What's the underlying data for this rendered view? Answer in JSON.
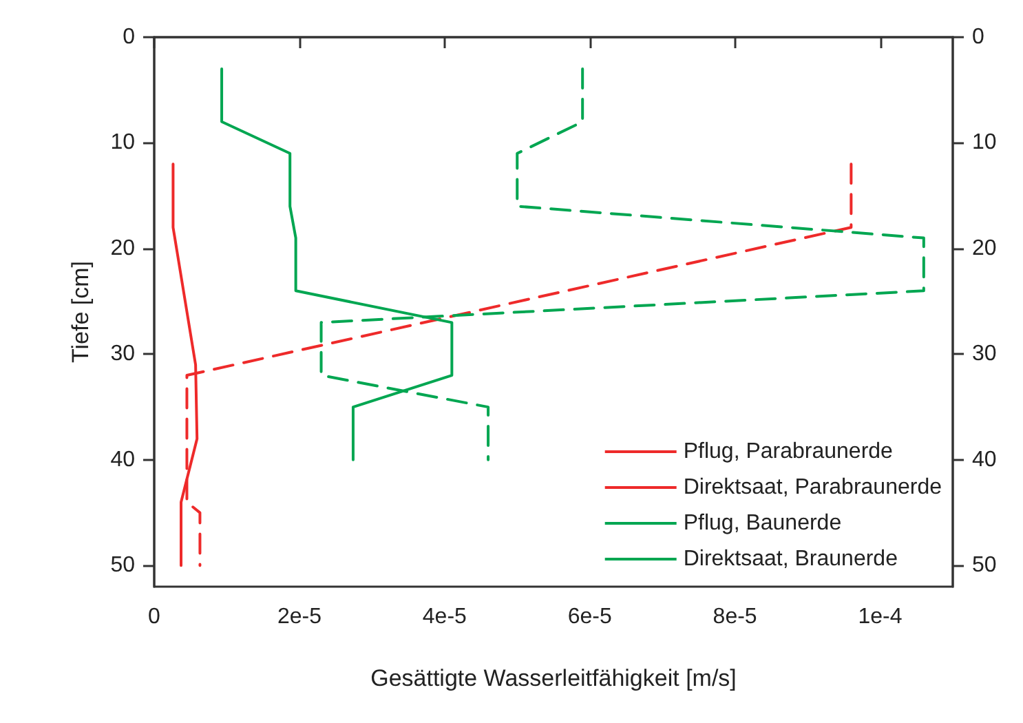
{
  "chart_data": {
    "type": "line",
    "xlabel": "Gesättigte Wasserleitfähigkeit [m/s]",
    "ylabel": "Tiefe [cm]",
    "xlim": [
      0,
      0.00011
    ],
    "xticks": [
      0,
      {
        "value": 2e-05,
        "label": "2e-5"
      },
      {
        "value": 4e-05,
        "label": "4e-5"
      },
      {
        "value": 6e-05,
        "label": "6e-5"
      },
      {
        "value": 8e-05,
        "label": "8e-5"
      },
      {
        "value": 0.0001,
        "label": "1e-4"
      }
    ],
    "ylim": [
      52,
      0
    ],
    "yticks": [
      0,
      10,
      20,
      30,
      40,
      50
    ],
    "y2lim": [
      52,
      0
    ],
    "y2ticks": [
      0,
      10,
      20,
      30,
      40,
      50
    ],
    "grid": false,
    "legend": "bottom right",
    "marker": "none",
    "series": [
      {
        "name": "Pflug, Parabraunerde",
        "color": "#ee2a2a",
        "line_style": "dashed",
        "x": [
          9.6e-05,
          9.6e-05,
          4.5e-06,
          4.5e-06,
          6.3e-06,
          6.3e-06
        ],
        "values": [
          12,
          18,
          32,
          44,
          45,
          50
        ]
      },
      {
        "name": "Direktsaat, Parabraunerde",
        "color": "#ee2a2a",
        "line_style": "solid",
        "x": [
          2.6e-06,
          2.6e-06,
          5.7e-06,
          5.9e-06,
          3.7e-06,
          3.7e-06
        ],
        "values": [
          12,
          18,
          31,
          38,
          44,
          50
        ]
      },
      {
        "name": "Pflug, Baunerde",
        "color": "#00a651",
        "line_style": "dashed",
        "x": [
          5.9e-05,
          5.9e-05,
          5e-05,
          5e-05,
          0.000106,
          0.000106,
          2.3e-05,
          2.3e-05,
          4.6e-05,
          4.6e-05
        ],
        "values": [
          3,
          8,
          11,
          16,
          19,
          24,
          27,
          32,
          35,
          40
        ]
      },
      {
        "name": "Direktsaat, Braunerde",
        "color": "#00a651",
        "line_style": "solid",
        "x": [
          9.3e-06,
          9.3e-06,
          1.87e-05,
          1.87e-05,
          1.95e-05,
          1.95e-05,
          4.1e-05,
          4.1e-05,
          2.74e-05,
          2.74e-05
        ],
        "values": [
          3,
          8,
          11,
          16,
          19,
          24,
          27,
          32,
          35,
          40
        ]
      }
    ]
  }
}
